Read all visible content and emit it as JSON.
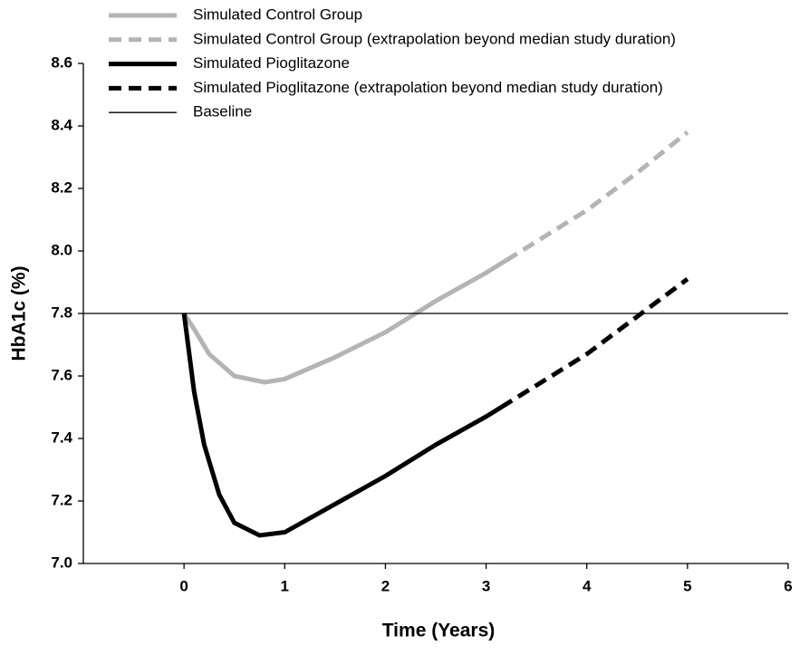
{
  "chart_data": {
    "type": "line",
    "x_label": "Time (Years)",
    "y_label": "HbA1c (%)",
    "xlim": [
      -1,
      6
    ],
    "xticks": [
      0,
      1,
      2,
      3,
      4,
      5,
      6
    ],
    "ylim": [
      7.0,
      8.6
    ],
    "yticks": [
      {
        "value": 7.0,
        "label": "7.0"
      },
      {
        "value": 7.2,
        "label": "7.2"
      },
      {
        "value": 7.4,
        "label": "7.4"
      },
      {
        "value": 7.6,
        "label": "7.6"
      },
      {
        "value": 7.8,
        "label": "7.8"
      },
      {
        "value": 8.0,
        "label": "8.0"
      },
      {
        "value": 8.2,
        "label": "8.2"
      },
      {
        "value": 8.4,
        "label": "8.4"
      },
      {
        "value": 8.6,
        "label": "8.6"
      }
    ],
    "series": [
      {
        "name": "Simulated Control Group",
        "color": "#b4b4b4",
        "dashed": false,
        "width": 5,
        "x": [
          0,
          0.1,
          0.25,
          0.5,
          0.8,
          1.0,
          1.5,
          2.0,
          2.5,
          3.0,
          3.2
        ],
        "values": [
          7.8,
          7.75,
          7.67,
          7.6,
          7.58,
          7.59,
          7.66,
          7.74,
          7.84,
          7.93,
          7.97
        ]
      },
      {
        "name": "Simulated Control Group (extrapolation beyond median study duration)",
        "color": "#b4b4b4",
        "dashed": true,
        "width": 5,
        "x": [
          3.2,
          3.5,
          4.0,
          4.5,
          5.0
        ],
        "values": [
          7.97,
          8.03,
          8.13,
          8.25,
          8.38
        ]
      },
      {
        "name": "Simulated Pioglitazone",
        "color": "#000000",
        "dashed": false,
        "width": 5,
        "x": [
          0,
          0.1,
          0.2,
          0.35,
          0.5,
          0.75,
          1.0,
          1.5,
          2.0,
          2.5,
          3.0,
          3.15
        ],
        "values": [
          7.8,
          7.55,
          7.38,
          7.22,
          7.13,
          7.09,
          7.1,
          7.19,
          7.28,
          7.38,
          7.47,
          7.5
        ]
      },
      {
        "name": "Simulated Pioglitazone (extrapolation beyond median study duration)",
        "color": "#000000",
        "dashed": true,
        "width": 5,
        "x": [
          3.15,
          3.5,
          4.0,
          4.5,
          5.0
        ],
        "values": [
          7.5,
          7.57,
          7.67,
          7.79,
          7.91
        ]
      },
      {
        "name": "Baseline",
        "color": "#000000",
        "dashed": false,
        "width": 1.3,
        "x": [
          -1,
          6
        ],
        "values": [
          7.8,
          7.8
        ]
      }
    ]
  }
}
